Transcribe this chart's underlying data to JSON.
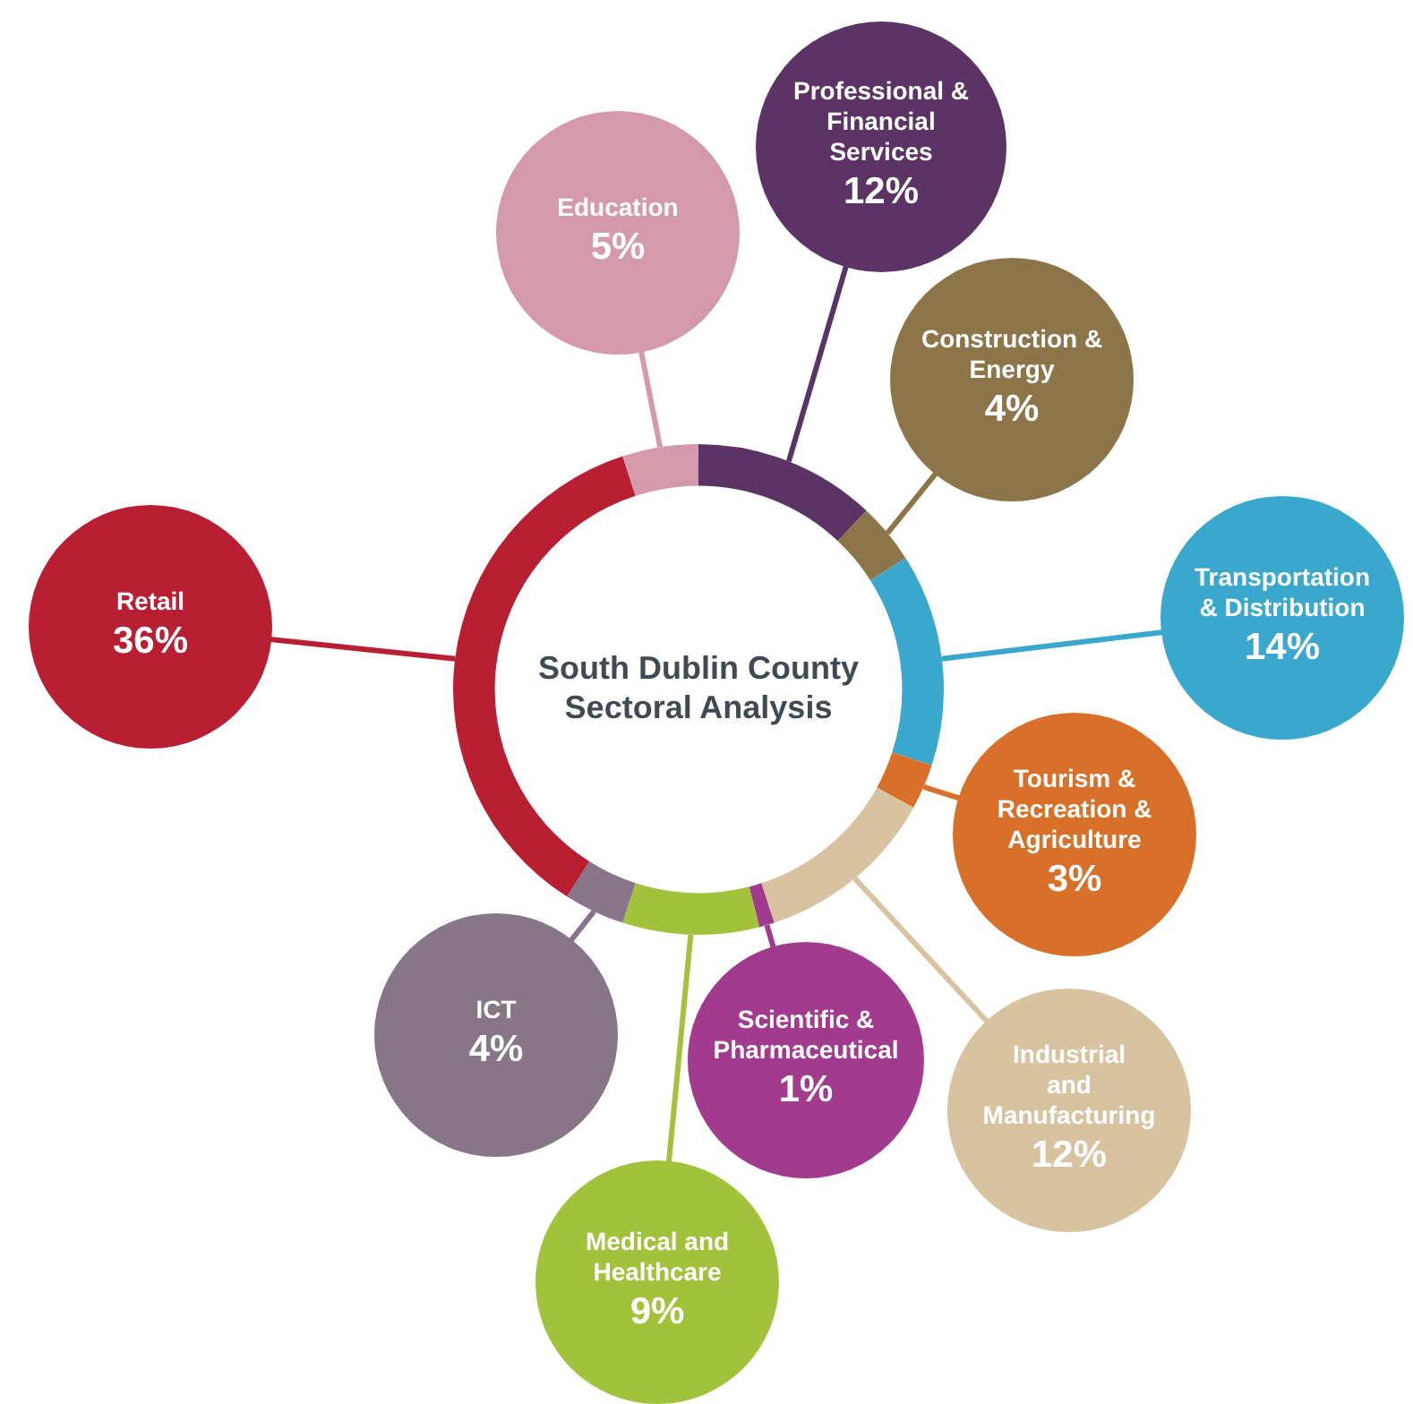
{
  "chart_data": {
    "type": "donut",
    "title": "South Dublin County Sectoral Analysis",
    "categories": [
      "Professional & Financial Services",
      "Construction & Energy",
      "Transportation & Distribution",
      "Tourism & Recreation & Agriculture",
      "Industrial and Manufacturing",
      "Scientific & Pharmaceutical",
      "Medical and Healthcare",
      "ICT",
      "Retail",
      "Education"
    ],
    "values": [
      12,
      4,
      14,
      3,
      12,
      1,
      9,
      4,
      36,
      5
    ],
    "value_labels": [
      "12%",
      "4%",
      "14%",
      "3%",
      "12%",
      "1%",
      "9%",
      "4%",
      "36%",
      "5%"
    ],
    "colors": [
      "#5b3364",
      "#8c7549",
      "#3aa8cc",
      "#d8702a",
      "#d7c3a0",
      "#a23b8e",
      "#a3c23c",
      "#877588",
      "#b81f32",
      "#d49aab"
    ],
    "legend": false
  }
}
